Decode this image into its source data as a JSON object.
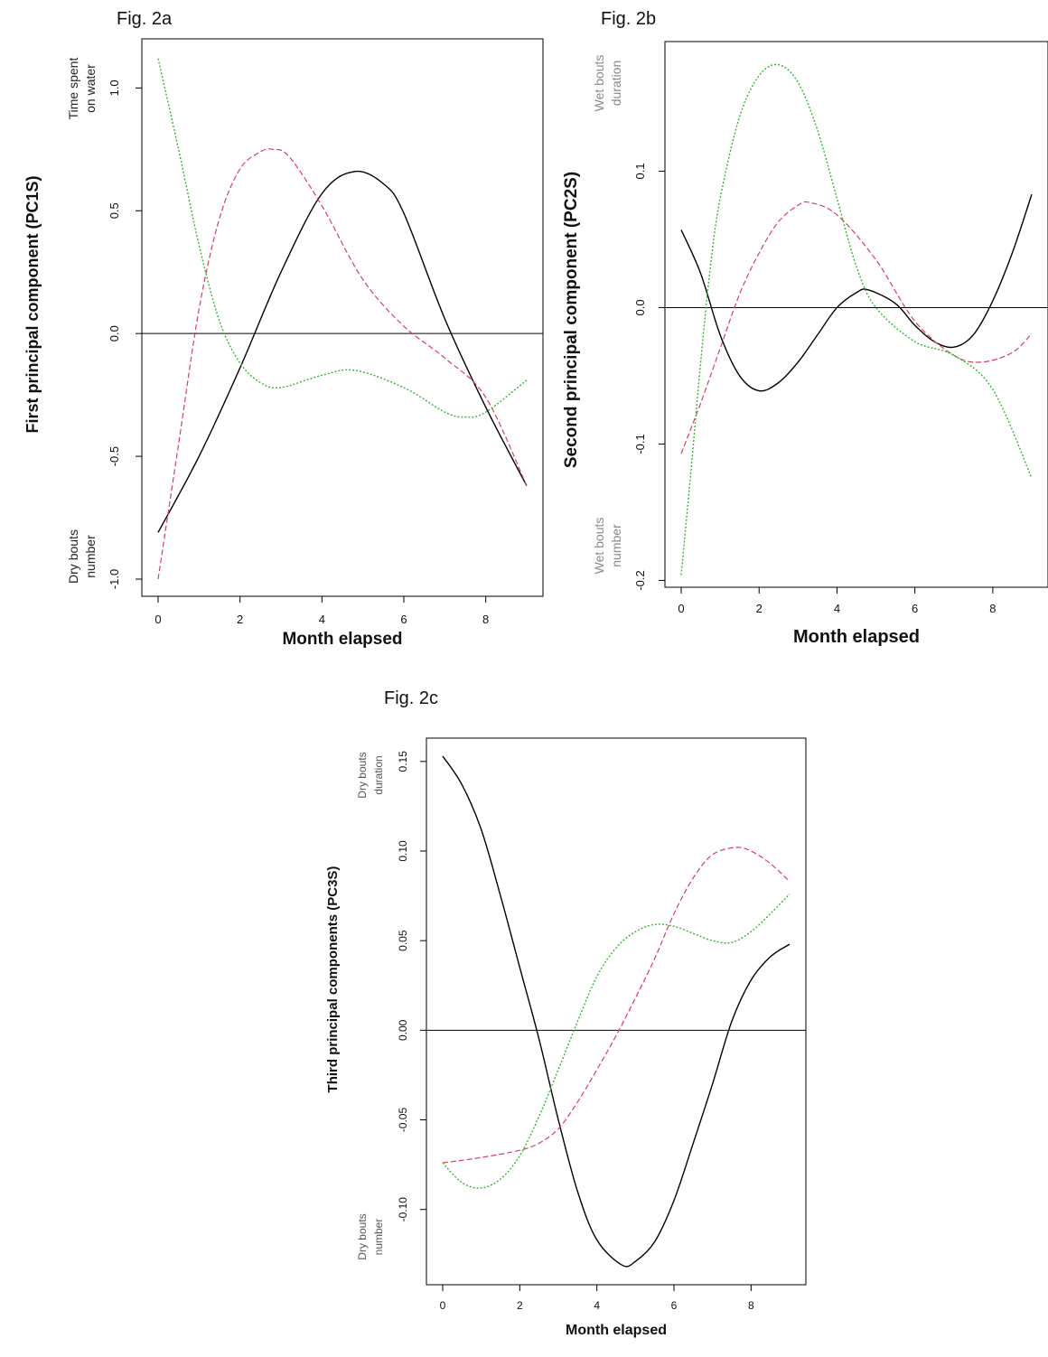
{
  "figures": [
    {
      "key": "a",
      "label": "Fig. 2a"
    },
    {
      "key": "b",
      "label": "Fig. 2b"
    },
    {
      "key": "c",
      "label": "Fig. 2c"
    }
  ],
  "colors": {
    "line1": "#000000",
    "line2": "#d9405a",
    "line3": "#2fb82f",
    "zero": "#000000"
  },
  "chart_data": [
    {
      "type": "line",
      "title": "",
      "xlabel": "Month elapsed",
      "ylabel": "First principal component (PC1S)",
      "xlim": [
        0,
        9
      ],
      "ylim": [
        -1.07,
        1.2
      ],
      "xticks": [
        0,
        2,
        4,
        6,
        8
      ],
      "xtick_labels": [
        "0",
        "2",
        "4",
        "6",
        "8"
      ],
      "yticks": [
        -1.0,
        -0.5,
        0.0,
        0.5,
        1.0
      ],
      "ytick_labels": [
        "-1.0",
        "-0.5",
        "0.0",
        "0.5",
        "1.0"
      ],
      "top_annotation": [
        "Time spent",
        "on water"
      ],
      "bottom_annotation": [
        "Dry bouts",
        "number"
      ],
      "zero_line": true,
      "series": [
        {
          "style": "solid",
          "x": [
            0,
            1,
            2,
            3,
            4,
            4.8,
            5.5,
            6,
            7,
            8,
            9
          ],
          "y": [
            -0.81,
            -0.5,
            -0.14,
            0.25,
            0.57,
            0.66,
            0.61,
            0.49,
            0.06,
            -0.3,
            -0.62
          ]
        },
        {
          "style": "dashed",
          "x": [
            0,
            0.5,
            1,
            1.5,
            2,
            2.5,
            2.8,
            3.2,
            4,
            5,
            6,
            7,
            8,
            9
          ],
          "y": [
            -1.0,
            -0.45,
            0.1,
            0.47,
            0.67,
            0.74,
            0.75,
            0.72,
            0.52,
            0.22,
            0.03,
            -0.1,
            -0.26,
            -0.62
          ]
        },
        {
          "style": "dotted",
          "x": [
            0,
            0.5,
            1,
            1.5,
            2,
            2.5,
            3,
            4,
            4.8,
            6,
            7,
            7.5,
            8,
            9
          ],
          "y": [
            1.12,
            0.75,
            0.36,
            0.05,
            -0.12,
            -0.2,
            -0.22,
            -0.17,
            -0.15,
            -0.22,
            -0.32,
            -0.34,
            -0.32,
            -0.19
          ]
        }
      ]
    },
    {
      "type": "line",
      "title": "",
      "xlabel": "Month elapsed",
      "ylabel": "Second principal component (PC2S)",
      "xlim": [
        0,
        9
      ],
      "ylim": [
        -0.205,
        0.195
      ],
      "xticks": [
        0,
        2,
        4,
        6,
        8
      ],
      "xtick_labels": [
        "0",
        "2",
        "4",
        "6",
        "8"
      ],
      "yticks": [
        -0.2,
        -0.1,
        0.0,
        0.1
      ],
      "ytick_labels": [
        "-0.2",
        "-0.1",
        "0.0",
        "0.1"
      ],
      "top_annotation": [
        "Wet bouts",
        "duration"
      ],
      "bottom_annotation": [
        "Wet bouts",
        "number"
      ],
      "zero_line": true,
      "series": [
        {
          "style": "solid",
          "x": [
            0,
            0.5,
            1,
            1.5,
            2,
            2.5,
            3,
            3.5,
            4,
            4.5,
            4.8,
            5.5,
            6,
            6.5,
            7,
            7.5,
            8,
            8.5,
            9
          ],
          "y": [
            0.057,
            0.025,
            -0.02,
            -0.05,
            -0.061,
            -0.055,
            -0.04,
            -0.02,
            0.0,
            0.011,
            0.013,
            0.003,
            -0.013,
            -0.025,
            -0.029,
            -0.02,
            0.005,
            0.04,
            0.083
          ]
        },
        {
          "style": "dashed",
          "x": [
            0,
            0.5,
            1,
            1.5,
            2,
            2.5,
            3,
            3.3,
            4,
            5,
            6,
            7,
            7.7,
            8.5,
            9
          ],
          "y": [
            -0.107,
            -0.07,
            -0.03,
            0.01,
            0.04,
            0.063,
            0.075,
            0.077,
            0.068,
            0.035,
            -0.01,
            -0.035,
            -0.04,
            -0.033,
            -0.019
          ]
        },
        {
          "style": "dotted",
          "x": [
            0,
            0.25,
            0.5,
            0.75,
            1,
            1.5,
            2,
            2.5,
            3,
            3.5,
            4,
            4.5,
            5,
            6,
            7,
            8,
            9
          ],
          "y": [
            -0.196,
            -0.12,
            -0.04,
            0.03,
            0.08,
            0.14,
            0.17,
            0.178,
            0.165,
            0.13,
            0.08,
            0.03,
            0.0,
            -0.025,
            -0.035,
            -0.06,
            -0.125
          ]
        }
      ]
    },
    {
      "type": "line",
      "title": "",
      "xlabel": "Month elapsed",
      "ylabel": "Third principal components (PC3S)",
      "xlim": [
        0,
        9
      ],
      "ylim": [
        -0.142,
        0.163
      ],
      "xticks": [
        0,
        2,
        4,
        6,
        8
      ],
      "xtick_labels": [
        "0",
        "2",
        "4",
        "6",
        "8"
      ],
      "yticks": [
        -0.1,
        -0.05,
        0.0,
        0.05,
        0.1,
        0.15
      ],
      "ytick_labels": [
        "-0.10",
        "-0.05",
        "0.00",
        "0.05",
        "0.10",
        "0.15"
      ],
      "top_annotation": [
        "Dry bouts",
        "duration"
      ],
      "bottom_annotation": [
        "Dry bouts",
        "number"
      ],
      "zero_line": true,
      "series": [
        {
          "style": "solid",
          "x": [
            0,
            0.5,
            1,
            1.5,
            2,
            2.5,
            3,
            3.5,
            4,
            4.65,
            5,
            5.5,
            6,
            6.5,
            7,
            7.5,
            8,
            8.5,
            9
          ],
          "y": [
            0.153,
            0.137,
            0.112,
            0.075,
            0.035,
            -0.005,
            -0.05,
            -0.09,
            -0.117,
            -0.131,
            -0.129,
            -0.118,
            -0.095,
            -0.063,
            -0.03,
            0.005,
            0.028,
            0.041,
            0.048
          ]
        },
        {
          "style": "dashed",
          "x": [
            0,
            1,
            2,
            2.5,
            3,
            3.5,
            4,
            4.5,
            5,
            5.5,
            6,
            6.5,
            7,
            7.6,
            8,
            8.5,
            9
          ],
          "y": [
            -0.074,
            -0.071,
            -0.067,
            -0.063,
            -0.055,
            -0.04,
            -0.022,
            -0.003,
            0.018,
            0.04,
            0.065,
            0.085,
            0.098,
            0.102,
            0.1,
            0.093,
            0.083
          ]
        },
        {
          "style": "dotted",
          "x": [
            0,
            0.5,
            1,
            1.5,
            2,
            2.5,
            3,
            3.5,
            4,
            4.5,
            5,
            5.5,
            6,
            6.5,
            7,
            7.5,
            8,
            8.5,
            9
          ],
          "y": [
            -0.074,
            -0.085,
            -0.088,
            -0.083,
            -0.07,
            -0.048,
            -0.022,
            0.005,
            0.03,
            0.046,
            0.055,
            0.059,
            0.058,
            0.054,
            0.05,
            0.049,
            0.055,
            0.065,
            0.076
          ]
        }
      ]
    }
  ]
}
